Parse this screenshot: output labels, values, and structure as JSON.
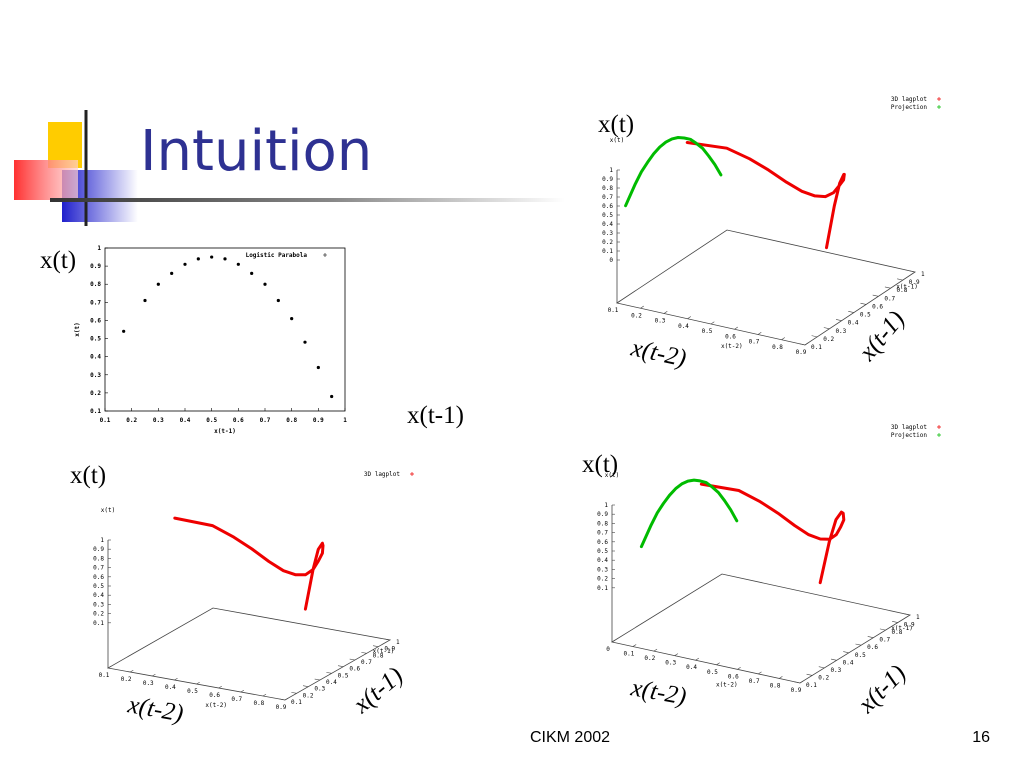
{
  "header": {
    "title": "Intuition"
  },
  "footer": {
    "venue": "CIKM 2002",
    "page": "16"
  },
  "chart_data": [
    {
      "type": "scatter",
      "legend": "Logistic Parabola",
      "xlabel": "x(t-1)",
      "ylabel": "x(t)",
      "annotations": [
        "x(t)",
        "x(t-1)"
      ],
      "color": "#000000",
      "x": [
        0.17,
        0.25,
        0.3,
        0.35,
        0.4,
        0.45,
        0.5,
        0.55,
        0.6,
        0.65,
        0.7,
        0.75,
        0.8,
        0.85,
        0.9,
        0.95
      ],
      "y": [
        0.54,
        0.71,
        0.8,
        0.86,
        0.91,
        0.94,
        0.95,
        0.94,
        0.91,
        0.86,
        0.8,
        0.71,
        0.61,
        0.48,
        0.34,
        0.18
      ],
      "xlim": [
        0.1,
        1
      ],
      "ylim": [
        0.1,
        1
      ],
      "xticks": [
        0.1,
        0.2,
        0.3,
        0.4,
        0.5,
        0.6,
        0.7,
        0.8,
        0.9,
        1
      ],
      "yticks": [
        0.1,
        0.2,
        0.3,
        0.4,
        0.5,
        0.6,
        0.7,
        0.8,
        0.9,
        1
      ]
    },
    {
      "type": "scatter3d",
      "xlabel": "x(t-2)",
      "ylabel": "x(t-1)",
      "zlabel": "x(t)",
      "annotations": [
        "x(t)",
        "x(t-2)",
        "x(t-1)"
      ],
      "series": [
        {
          "name": "3D lagplot",
          "color": "#ee0000",
          "x": [
            0.17,
            0.25,
            0.3,
            0.35,
            0.4,
            0.45,
            0.5,
            0.55,
            0.6,
            0.65,
            0.7,
            0.75,
            0.8,
            0.85,
            0.9,
            0.95
          ],
          "y": [
            0.54,
            0.71,
            0.8,
            0.86,
            0.91,
            0.94,
            0.95,
            0.94,
            0.91,
            0.86,
            0.8,
            0.71,
            0.61,
            0.48,
            0.34,
            0.18
          ],
          "z": [
            0.95,
            0.78,
            0.61,
            0.46,
            0.31,
            0.21,
            0.18,
            0.21,
            0.31,
            0.46,
            0.61,
            0.78,
            0.9,
            0.95,
            0.85,
            0.56
          ]
        },
        {
          "name": "Projection",
          "color": "#00bb00",
          "x": [
            0.1,
            0.1,
            0.1,
            0.1,
            0.1,
            0.1,
            0.1,
            0.1,
            0.1,
            0.1,
            0.1,
            0.1,
            0.1,
            0.1,
            0.1,
            0.1
          ],
          "y": [
            0.17,
            0.25,
            0.3,
            0.35,
            0.4,
            0.45,
            0.5,
            0.55,
            0.6,
            0.65,
            0.7,
            0.75,
            0.8,
            0.85,
            0.9,
            0.95
          ],
          "z": [
            0.54,
            0.71,
            0.8,
            0.86,
            0.91,
            0.94,
            0.95,
            0.94,
            0.91,
            0.86,
            0.8,
            0.71,
            0.61,
            0.48,
            0.34,
            0.18
          ]
        }
      ],
      "xlim": [
        0.1,
        0.9
      ],
      "ylim": [
        0.1,
        1
      ],
      "zlim": [
        0,
        1
      ],
      "xticks": [
        0.1,
        0.2,
        0.3,
        0.4,
        0.5,
        0.6,
        0.7,
        0.8,
        0.9
      ],
      "yticks": [
        0.1,
        0.2,
        0.3,
        0.4,
        0.5,
        0.6,
        0.7,
        0.8,
        0.9,
        1
      ],
      "zticks": [
        0,
        0.1,
        0.2,
        0.3,
        0.4,
        0.5,
        0.6,
        0.7,
        0.8,
        0.9,
        1
      ]
    },
    {
      "type": "scatter3d",
      "xlabel": "x(t-2)",
      "ylabel": "x(t-1)",
      "zlabel": "x(t)",
      "annotations": [
        "x(t)",
        "x(t-2)",
        "x(t-1)"
      ],
      "series": [
        {
          "name": "3D lagplot",
          "color": "#ee0000",
          "x": [
            0.17,
            0.25,
            0.3,
            0.35,
            0.4,
            0.45,
            0.5,
            0.55,
            0.6,
            0.65,
            0.7,
            0.75,
            0.8,
            0.85,
            0.9,
            0.95
          ],
          "y": [
            0.54,
            0.71,
            0.8,
            0.86,
            0.91,
            0.94,
            0.95,
            0.94,
            0.91,
            0.86,
            0.8,
            0.71,
            0.61,
            0.48,
            0.34,
            0.18
          ],
          "z": [
            0.95,
            0.78,
            0.61,
            0.46,
            0.31,
            0.21,
            0.18,
            0.21,
            0.31,
            0.46,
            0.61,
            0.78,
            0.9,
            0.95,
            0.85,
            0.56
          ]
        }
      ],
      "xlim": [
        0.1,
        0.9
      ],
      "ylim": [
        0.1,
        1
      ],
      "zlim": [
        0,
        1
      ],
      "xticks": [
        0.1,
        0.2,
        0.3,
        0.4,
        0.5,
        0.6,
        0.7,
        0.8,
        0.9
      ],
      "yticks": [
        0.1,
        0.2,
        0.3,
        0.4,
        0.5,
        0.6,
        0.7,
        0.8,
        0.9,
        1
      ],
      "zticks": [
        0.1,
        0.2,
        0.3,
        0.4,
        0.5,
        0.6,
        0.7,
        0.8,
        0.9,
        1
      ]
    },
    {
      "type": "scatter3d",
      "xlabel": "x(t-2)",
      "ylabel": "x(t-1)",
      "zlabel": "x(t)",
      "annotations": [
        "x(t)",
        "x(t-2)",
        "x(t-1)"
      ],
      "series": [
        {
          "name": "3D lagplot",
          "color": "#ee0000",
          "x": [
            0.17,
            0.25,
            0.3,
            0.35,
            0.4,
            0.45,
            0.5,
            0.55,
            0.6,
            0.65,
            0.7,
            0.75,
            0.8,
            0.85,
            0.9,
            0.95
          ],
          "y": [
            0.54,
            0.71,
            0.8,
            0.86,
            0.91,
            0.94,
            0.95,
            0.94,
            0.91,
            0.86,
            0.8,
            0.71,
            0.61,
            0.48,
            0.34,
            0.18
          ],
          "z": [
            0.95,
            0.78,
            0.61,
            0.46,
            0.31,
            0.21,
            0.18,
            0.21,
            0.31,
            0.46,
            0.61,
            0.78,
            0.9,
            0.95,
            0.85,
            0.56
          ]
        },
        {
          "name": "Projection",
          "color": "#00bb00",
          "x": [
            0.1,
            0.1,
            0.1,
            0.1,
            0.1,
            0.1,
            0.1,
            0.1,
            0.1,
            0.1,
            0.1,
            0.1,
            0.1,
            0.1,
            0.1,
            0.1
          ],
          "y": [
            0.17,
            0.25,
            0.3,
            0.35,
            0.4,
            0.45,
            0.5,
            0.55,
            0.6,
            0.65,
            0.7,
            0.75,
            0.8,
            0.85,
            0.9,
            0.95
          ],
          "z": [
            0.54,
            0.71,
            0.8,
            0.86,
            0.91,
            0.94,
            0.95,
            0.94,
            0.91,
            0.86,
            0.8,
            0.71,
            0.61,
            0.48,
            0.34,
            0.18
          ]
        }
      ],
      "xlim": [
        0,
        0.9
      ],
      "ylim": [
        0.1,
        1
      ],
      "zlim": [
        0,
        1
      ],
      "xticks": [
        0,
        0.1,
        0.2,
        0.3,
        0.4,
        0.5,
        0.6,
        0.7,
        0.8,
        0.9
      ],
      "yticks": [
        0.1,
        0.2,
        0.3,
        0.4,
        0.5,
        0.6,
        0.7,
        0.8,
        0.9,
        1
      ],
      "zticks": [
        0.1,
        0.2,
        0.3,
        0.4,
        0.5,
        0.6,
        0.7,
        0.8,
        0.9,
        1
      ]
    }
  ]
}
